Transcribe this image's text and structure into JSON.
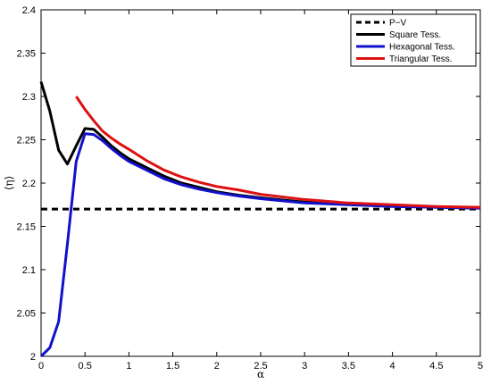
{
  "chart_data": {
    "type": "line",
    "title": "",
    "xlabel": "α",
    "ylabel": "⟨η⟩",
    "xlim": [
      0,
      5
    ],
    "ylim": [
      2,
      2.4
    ],
    "xticks": [
      0,
      0.5,
      1,
      1.5,
      2,
      2.5,
      3,
      3.5,
      4,
      4.5,
      5
    ],
    "xtick_labels": [
      "0",
      "0.5",
      "1",
      "1.5",
      "2",
      "2.5",
      "3",
      "3.5",
      "4",
      "4.5",
      "5"
    ],
    "yticks": [
      2,
      2.05,
      2.1,
      2.15,
      2.2,
      2.25,
      2.3,
      2.35,
      2.4
    ],
    "ytick_labels": [
      "2",
      "2.05",
      "2.1",
      "2.15",
      "2.2",
      "2.25",
      "2.3",
      "2.35",
      "2.4"
    ],
    "grid": false,
    "legend_position": "top-right",
    "series": [
      {
        "name": "P−V",
        "color": "#000000",
        "style": "dashed",
        "x": [
          0,
          5
        ],
        "y": [
          2.17,
          2.17
        ]
      },
      {
        "name": "Square Tess.",
        "color": "#000000",
        "style": "solid",
        "x": [
          0,
          0.1,
          0.2,
          0.3,
          0.4,
          0.5,
          0.6,
          0.7,
          0.8,
          0.9,
          1.0,
          1.2,
          1.4,
          1.6,
          1.8,
          2.0,
          2.25,
          2.5,
          3.0,
          3.5,
          4.0,
          4.5,
          5.0
        ],
        "y": [
          2.317,
          2.283,
          2.238,
          2.222,
          2.243,
          2.263,
          2.262,
          2.253,
          2.243,
          2.235,
          2.228,
          2.218,
          2.208,
          2.2,
          2.195,
          2.19,
          2.186,
          2.183,
          2.178,
          2.176,
          2.174,
          2.172,
          2.171
        ]
      },
      {
        "name": "Hexagonal Tess.",
        "color": "#1111cc",
        "style": "solid",
        "x": [
          0,
          0.1,
          0.2,
          0.3,
          0.4,
          0.5,
          0.6,
          0.7,
          0.8,
          0.9,
          1.0,
          1.2,
          1.4,
          1.6,
          1.8,
          2.0,
          2.25,
          2.5,
          3.0,
          3.5,
          4.0,
          4.5,
          5.0
        ],
        "y": [
          2.0,
          2.01,
          2.04,
          2.13,
          2.225,
          2.257,
          2.256,
          2.249,
          2.24,
          2.232,
          2.225,
          2.215,
          2.205,
          2.198,
          2.193,
          2.189,
          2.185,
          2.182,
          2.177,
          2.175,
          2.173,
          2.172,
          2.171
        ]
      },
      {
        "name": "Triangular Tess.",
        "color": "#dd1111",
        "style": "solid",
        "x": [
          0.4,
          0.5,
          0.6,
          0.7,
          0.8,
          0.9,
          1.0,
          1.2,
          1.4,
          1.6,
          1.8,
          2.0,
          2.25,
          2.5,
          3.0,
          3.5,
          4.0,
          4.5,
          5.0
        ],
        "y": [
          2.3,
          2.285,
          2.272,
          2.26,
          2.252,
          2.245,
          2.239,
          2.226,
          2.215,
          2.207,
          2.201,
          2.196,
          2.192,
          2.187,
          2.181,
          2.177,
          2.175,
          2.173,
          2.172
        ]
      }
    ]
  }
}
